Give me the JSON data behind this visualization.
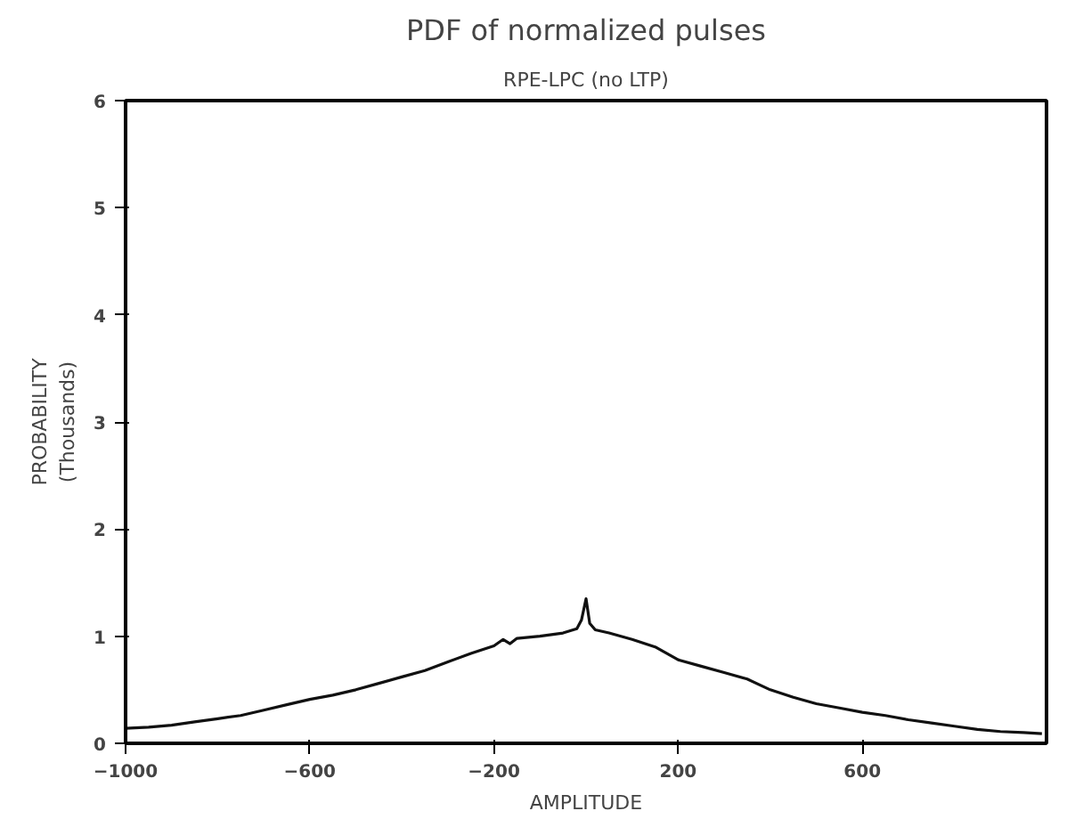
{
  "chart_data": {
    "type": "line",
    "title": "PDF of normalized pulses",
    "subtitle": "RPE-LPC (no LTP)",
    "xlabel": "AMPLITUDE",
    "ylabel": "PROBABILITY\n(Thousands)",
    "x": [
      -1000,
      -950,
      -900,
      -850,
      -800,
      -750,
      -700,
      -650,
      -600,
      -550,
      -500,
      -450,
      -400,
      -350,
      -300,
      -250,
      -200,
      -180,
      -165,
      -150,
      -100,
      -50,
      -20,
      -10,
      0,
      8,
      20,
      50,
      100,
      150,
      200,
      250,
      300,
      350,
      400,
      450,
      500,
      550,
      600,
      650,
      700,
      750,
      800,
      850,
      900,
      950,
      990
    ],
    "series": [
      {
        "color": "#111111",
        "values": [
          0.14,
          0.15,
          0.17,
          0.2,
          0.23,
          0.26,
          0.31,
          0.36,
          0.41,
          0.45,
          0.5,
          0.56,
          0.62,
          0.68,
          0.76,
          0.84,
          0.91,
          0.97,
          0.93,
          0.98,
          1.0,
          1.03,
          1.07,
          1.15,
          1.35,
          1.12,
          1.06,
          1.03,
          0.97,
          0.9,
          0.78,
          0.72,
          0.66,
          0.6,
          0.5,
          0.43,
          0.37,
          0.33,
          0.29,
          0.26,
          0.22,
          0.19,
          0.16,
          0.13,
          0.11,
          0.1,
          0.09
        ]
      }
    ],
    "xlim": [
      -1000,
      1000
    ],
    "ylim": [
      0,
      6
    ],
    "xticks": [
      -1000,
      -600,
      -200,
      200,
      600
    ],
    "yticks": [
      0,
      1,
      2,
      3,
      4,
      5,
      6
    ],
    "line_style": "solid"
  }
}
